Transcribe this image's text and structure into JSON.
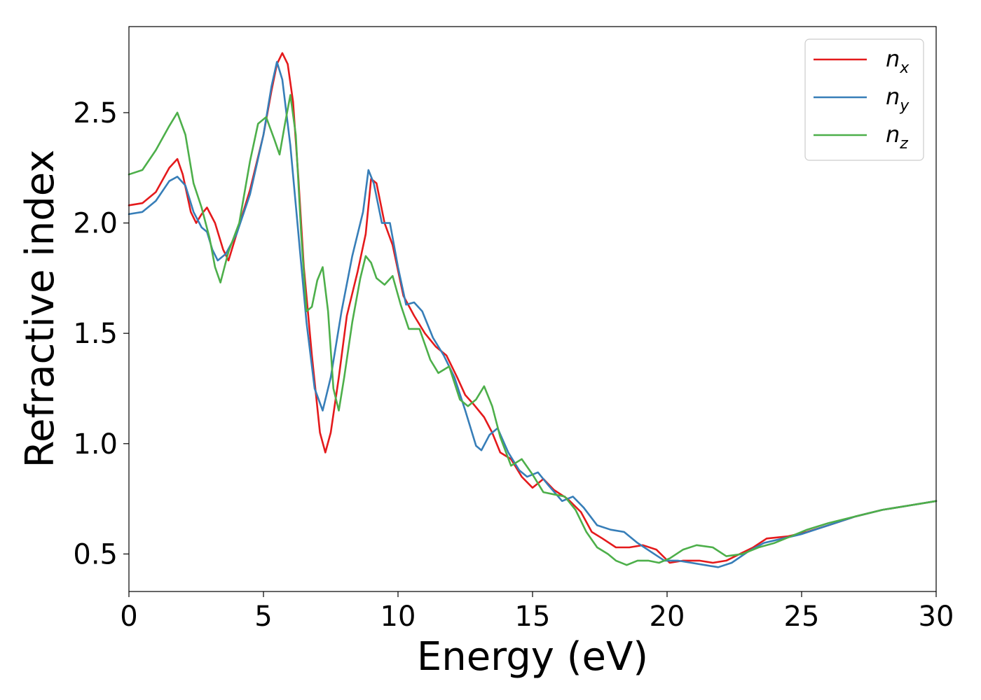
{
  "chart_data": {
    "type": "line",
    "xlabel": "Energy (eV)",
    "ylabel": "Refractive index",
    "xlim": [
      0,
      30
    ],
    "ylim": [
      0.33,
      2.89
    ],
    "xticks": [
      0,
      5,
      10,
      15,
      20,
      25,
      30
    ],
    "xtick_labels": [
      "0",
      "5",
      "10",
      "15",
      "20",
      "25",
      "30"
    ],
    "yticks": [
      0.5,
      1.0,
      1.5,
      2.0,
      2.5
    ],
    "ytick_labels": [
      "0.5",
      "1.0",
      "1.5",
      "2.0",
      "2.5"
    ],
    "grid": false,
    "legend_position": "top-right",
    "series": [
      {
        "name": "n_x",
        "legend_base": "n",
        "legend_sub": "x",
        "color": "#e41a1c",
        "points": [
          [
            0,
            2.08
          ],
          [
            0.5,
            2.09
          ],
          [
            1.0,
            2.14
          ],
          [
            1.5,
            2.25
          ],
          [
            1.8,
            2.29
          ],
          [
            2.0,
            2.22
          ],
          [
            2.3,
            2.05
          ],
          [
            2.5,
            2.0
          ],
          [
            2.7,
            2.04
          ],
          [
            2.9,
            2.07
          ],
          [
            3.2,
            2.0
          ],
          [
            3.5,
            1.88
          ],
          [
            3.7,
            1.83
          ],
          [
            4.0,
            1.95
          ],
          [
            4.5,
            2.15
          ],
          [
            5.0,
            2.4
          ],
          [
            5.3,
            2.6
          ],
          [
            5.5,
            2.72
          ],
          [
            5.7,
            2.77
          ],
          [
            5.9,
            2.72
          ],
          [
            6.1,
            2.55
          ],
          [
            6.3,
            2.2
          ],
          [
            6.5,
            1.8
          ],
          [
            6.8,
            1.4
          ],
          [
            7.1,
            1.05
          ],
          [
            7.3,
            0.96
          ],
          [
            7.5,
            1.05
          ],
          [
            7.8,
            1.3
          ],
          [
            8.1,
            1.58
          ],
          [
            8.5,
            1.78
          ],
          [
            8.8,
            1.95
          ],
          [
            9.0,
            2.2
          ],
          [
            9.2,
            2.18
          ],
          [
            9.5,
            2.0
          ],
          [
            9.8,
            1.9
          ],
          [
            10.2,
            1.67
          ],
          [
            10.6,
            1.58
          ],
          [
            11.0,
            1.5
          ],
          [
            11.4,
            1.44
          ],
          [
            11.8,
            1.4
          ],
          [
            12.2,
            1.3
          ],
          [
            12.5,
            1.22
          ],
          [
            12.8,
            1.18
          ],
          [
            13.2,
            1.12
          ],
          [
            13.5,
            1.05
          ],
          [
            13.8,
            0.96
          ],
          [
            14.2,
            0.93
          ],
          [
            14.6,
            0.85
          ],
          [
            15.0,
            0.8
          ],
          [
            15.4,
            0.84
          ],
          [
            15.8,
            0.79
          ],
          [
            16.3,
            0.75
          ],
          [
            16.8,
            0.69
          ],
          [
            17.2,
            0.6
          ],
          [
            17.6,
            0.57
          ],
          [
            18.1,
            0.53
          ],
          [
            18.6,
            0.53
          ],
          [
            19.1,
            0.54
          ],
          [
            19.6,
            0.52
          ],
          [
            20.1,
            0.46
          ],
          [
            20.6,
            0.47
          ],
          [
            21.2,
            0.47
          ],
          [
            21.7,
            0.46
          ],
          [
            22.2,
            0.47
          ],
          [
            22.7,
            0.5
          ],
          [
            23.2,
            0.53
          ],
          [
            23.7,
            0.57
          ],
          [
            24.5,
            0.58
          ],
          [
            25.2,
            0.6
          ],
          [
            26.0,
            0.63
          ],
          [
            27.0,
            0.67
          ],
          [
            28.0,
            0.7
          ],
          [
            29.0,
            0.72
          ],
          [
            30.0,
            0.74
          ]
        ]
      },
      {
        "name": "n_y",
        "legend_base": "n",
        "legend_sub": "y",
        "color": "#377eb8",
        "points": [
          [
            0,
            2.04
          ],
          [
            0.5,
            2.05
          ],
          [
            1.0,
            2.1
          ],
          [
            1.5,
            2.19
          ],
          [
            1.8,
            2.21
          ],
          [
            2.1,
            2.17
          ],
          [
            2.4,
            2.05
          ],
          [
            2.7,
            1.98
          ],
          [
            2.9,
            1.96
          ],
          [
            3.1,
            1.88
          ],
          [
            3.3,
            1.83
          ],
          [
            3.6,
            1.86
          ],
          [
            4.0,
            1.95
          ],
          [
            4.5,
            2.13
          ],
          [
            5.0,
            2.4
          ],
          [
            5.3,
            2.62
          ],
          [
            5.5,
            2.73
          ],
          [
            5.7,
            2.65
          ],
          [
            6.0,
            2.35
          ],
          [
            6.3,
            1.95
          ],
          [
            6.6,
            1.55
          ],
          [
            6.9,
            1.25
          ],
          [
            7.2,
            1.15
          ],
          [
            7.5,
            1.3
          ],
          [
            7.9,
            1.6
          ],
          [
            8.3,
            1.85
          ],
          [
            8.7,
            2.05
          ],
          [
            8.9,
            2.24
          ],
          [
            9.1,
            2.18
          ],
          [
            9.4,
            2.0
          ],
          [
            9.7,
            2.0
          ],
          [
            10.0,
            1.8
          ],
          [
            10.3,
            1.63
          ],
          [
            10.6,
            1.64
          ],
          [
            10.9,
            1.6
          ],
          [
            11.3,
            1.48
          ],
          [
            11.7,
            1.4
          ],
          [
            12.1,
            1.3
          ],
          [
            12.5,
            1.15
          ],
          [
            12.9,
            0.99
          ],
          [
            13.1,
            0.97
          ],
          [
            13.4,
            1.04
          ],
          [
            13.7,
            1.07
          ],
          [
            14.1,
            0.96
          ],
          [
            14.5,
            0.88
          ],
          [
            14.8,
            0.85
          ],
          [
            15.2,
            0.87
          ],
          [
            15.6,
            0.81
          ],
          [
            16.1,
            0.74
          ],
          [
            16.5,
            0.76
          ],
          [
            16.9,
            0.71
          ],
          [
            17.4,
            0.63
          ],
          [
            17.9,
            0.61
          ],
          [
            18.4,
            0.6
          ],
          [
            18.9,
            0.55
          ],
          [
            19.4,
            0.51
          ],
          [
            19.9,
            0.47
          ],
          [
            20.4,
            0.47
          ],
          [
            20.9,
            0.46
          ],
          [
            21.4,
            0.45
          ],
          [
            21.9,
            0.44
          ],
          [
            22.4,
            0.46
          ],
          [
            23.0,
            0.51
          ],
          [
            23.6,
            0.55
          ],
          [
            24.3,
            0.57
          ],
          [
            25.0,
            0.59
          ],
          [
            26.0,
            0.63
          ],
          [
            27.0,
            0.67
          ],
          [
            28.0,
            0.7
          ],
          [
            29.0,
            0.72
          ],
          [
            30.0,
            0.74
          ]
        ]
      },
      {
        "name": "n_z",
        "legend_base": "n",
        "legend_sub": "z",
        "color": "#4daf4a",
        "points": [
          [
            0,
            2.22
          ],
          [
            0.5,
            2.24
          ],
          [
            1.0,
            2.33
          ],
          [
            1.5,
            2.44
          ],
          [
            1.8,
            2.5
          ],
          [
            2.1,
            2.4
          ],
          [
            2.4,
            2.18
          ],
          [
            2.7,
            2.07
          ],
          [
            3.0,
            1.93
          ],
          [
            3.2,
            1.8
          ],
          [
            3.4,
            1.73
          ],
          [
            3.7,
            1.87
          ],
          [
            4.1,
            2.0
          ],
          [
            4.5,
            2.28
          ],
          [
            4.8,
            2.45
          ],
          [
            5.1,
            2.48
          ],
          [
            5.4,
            2.38
          ],
          [
            5.6,
            2.31
          ],
          [
            5.8,
            2.45
          ],
          [
            6.0,
            2.58
          ],
          [
            6.2,
            2.4
          ],
          [
            6.4,
            1.95
          ],
          [
            6.6,
            1.6
          ],
          [
            6.8,
            1.62
          ],
          [
            7.0,
            1.74
          ],
          [
            7.2,
            1.8
          ],
          [
            7.4,
            1.6
          ],
          [
            7.6,
            1.25
          ],
          [
            7.8,
            1.15
          ],
          [
            8.0,
            1.3
          ],
          [
            8.3,
            1.55
          ],
          [
            8.6,
            1.75
          ],
          [
            8.8,
            1.85
          ],
          [
            9.0,
            1.82
          ],
          [
            9.2,
            1.75
          ],
          [
            9.5,
            1.72
          ],
          [
            9.8,
            1.76
          ],
          [
            10.1,
            1.63
          ],
          [
            10.4,
            1.52
          ],
          [
            10.8,
            1.52
          ],
          [
            11.2,
            1.38
          ],
          [
            11.5,
            1.32
          ],
          [
            11.9,
            1.35
          ],
          [
            12.3,
            1.2
          ],
          [
            12.6,
            1.17
          ],
          [
            12.9,
            1.2
          ],
          [
            13.2,
            1.26
          ],
          [
            13.5,
            1.17
          ],
          [
            13.8,
            1.03
          ],
          [
            14.2,
            0.9
          ],
          [
            14.6,
            0.93
          ],
          [
            15.0,
            0.86
          ],
          [
            15.4,
            0.78
          ],
          [
            15.8,
            0.77
          ],
          [
            16.2,
            0.76
          ],
          [
            16.6,
            0.7
          ],
          [
            17.0,
            0.6
          ],
          [
            17.4,
            0.53
          ],
          [
            17.8,
            0.5
          ],
          [
            18.1,
            0.47
          ],
          [
            18.5,
            0.45
          ],
          [
            18.9,
            0.47
          ],
          [
            19.3,
            0.47
          ],
          [
            19.7,
            0.46
          ],
          [
            20.1,
            0.48
          ],
          [
            20.6,
            0.52
          ],
          [
            21.1,
            0.54
          ],
          [
            21.7,
            0.53
          ],
          [
            22.2,
            0.49
          ],
          [
            22.8,
            0.5
          ],
          [
            23.4,
            0.53
          ],
          [
            24.0,
            0.55
          ],
          [
            24.6,
            0.58
          ],
          [
            25.2,
            0.61
          ],
          [
            26.0,
            0.64
          ],
          [
            27.0,
            0.67
          ],
          [
            28.0,
            0.7
          ],
          [
            29.0,
            0.72
          ],
          [
            30.0,
            0.74
          ]
        ]
      }
    ]
  }
}
